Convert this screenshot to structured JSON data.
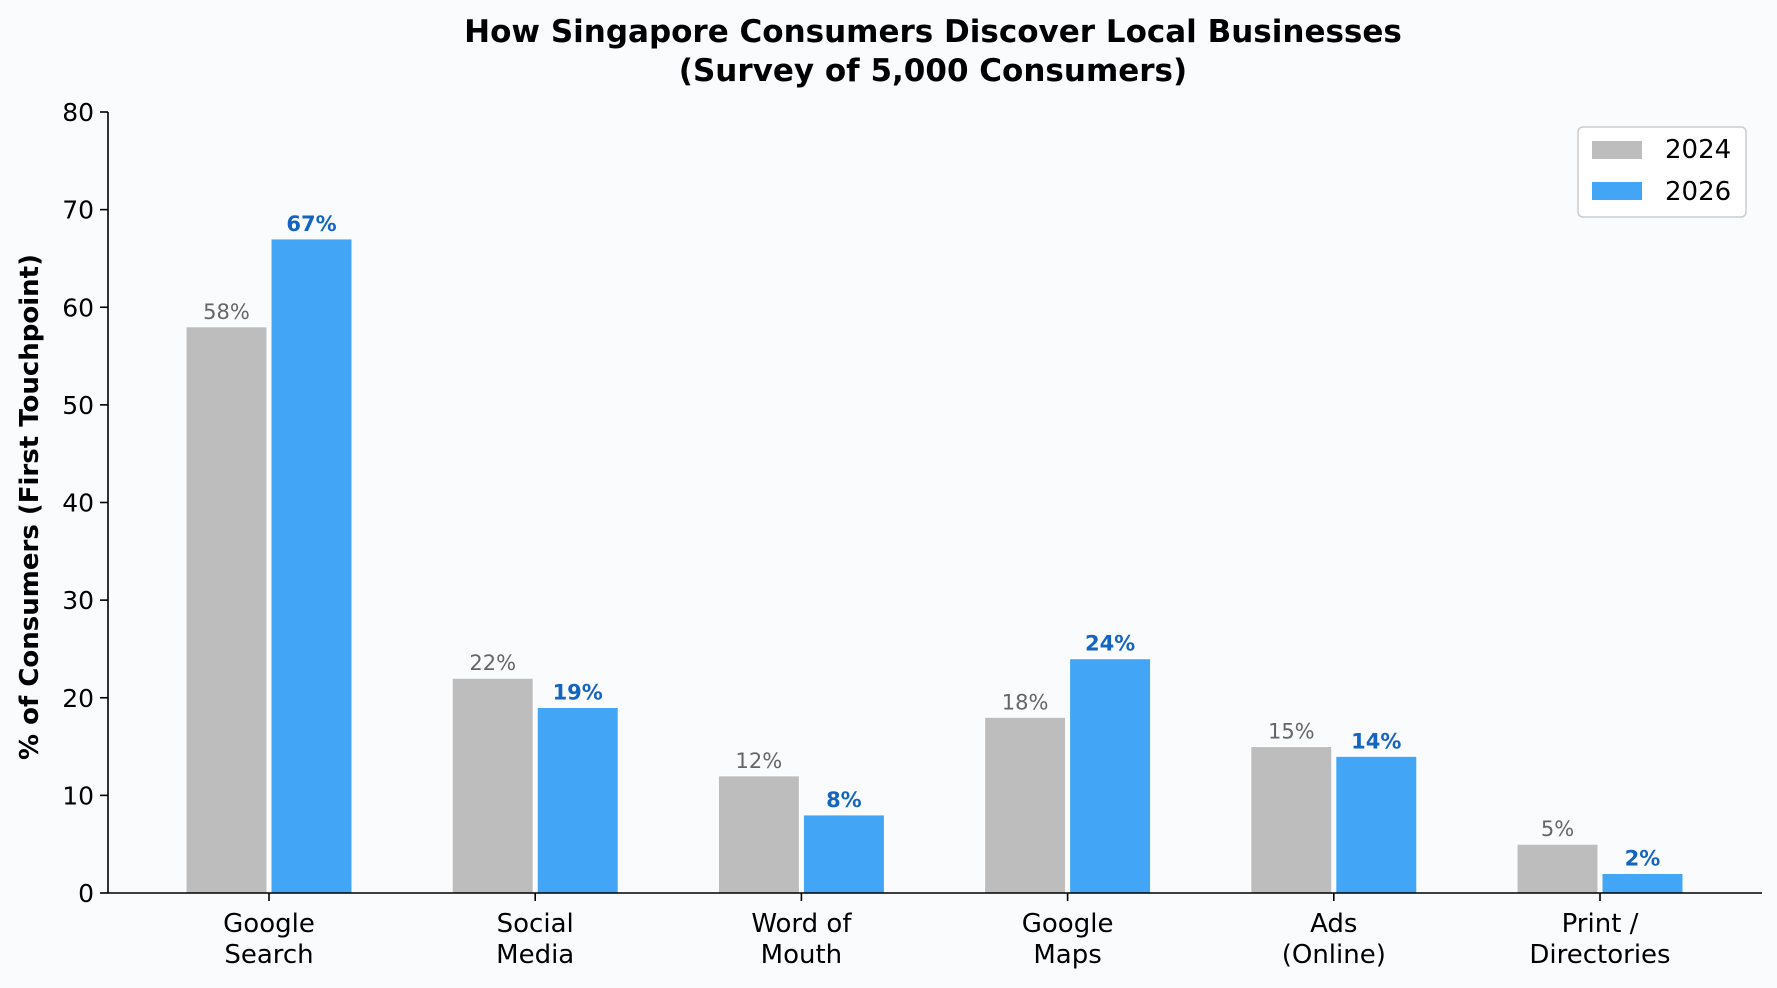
{
  "chart_data": {
    "type": "bar",
    "title": "How Singapore Consumers Discover Local Businesses",
    "subtitle": "(Survey of 5,000 Consumers)",
    "xlabel": "",
    "ylabel": "% of Consumers (First Touchpoint)",
    "ylim": [
      0,
      80
    ],
    "yticks": [
      0,
      10,
      20,
      30,
      40,
      50,
      60,
      70,
      80
    ],
    "categories": [
      [
        "Google",
        "Search"
      ],
      [
        "Social",
        "Media"
      ],
      [
        "Word of",
        "Mouth"
      ],
      [
        "Google",
        "Maps"
      ],
      [
        "Ads",
        "(Online)"
      ],
      [
        "Print /",
        "Directories"
      ]
    ],
    "series": [
      {
        "name": "2024",
        "values": [
          58,
          22,
          12,
          18,
          15,
          5
        ],
        "labels": [
          "58%",
          "22%",
          "12%",
          "18%",
          "15%",
          "5%"
        ],
        "color": "#bdbdbd",
        "label_color": "#666666"
      },
      {
        "name": "2026",
        "values": [
          67,
          19,
          8,
          24,
          14,
          2
        ],
        "labels": [
          "67%",
          "19%",
          "8%",
          "24%",
          "14%",
          "2%"
        ],
        "color": "#42a5f5",
        "label_color": "#1565c0"
      }
    ],
    "grid": false,
    "legend_position": "top-right",
    "spines": "left-bottom"
  },
  "colors": {
    "background": "#f9fbfd",
    "axis": "#000000"
  }
}
